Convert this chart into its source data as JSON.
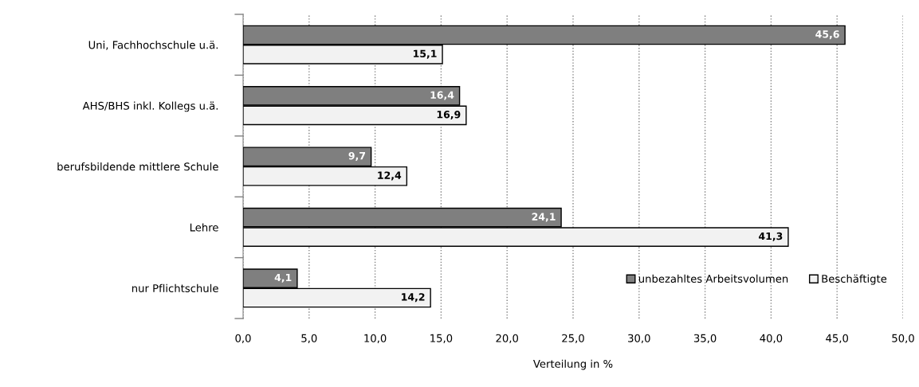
{
  "chart_data": {
    "type": "bar",
    "orientation": "horizontal",
    "xlabel": "Verteilung in %",
    "categories": [
      "Uni, Fachhochschule u.ä.",
      "AHS/BHS inkl. Kollegs u.ä.",
      "berufsbildende mittlere Schule",
      "Lehre",
      "nur Pflichtschule"
    ],
    "series": [
      {
        "name": "unbezahltes Arbeitsvolumen",
        "color": "#7f7f7f",
        "values": [
          45.6,
          16.4,
          9.7,
          24.1,
          4.1
        ],
        "value_labels": [
          "45,6",
          "16,4",
          "9,7",
          "24,1",
          "4,1"
        ]
      },
      {
        "name": "Beschäftigte",
        "color": "#f2f2f2",
        "values": [
          15.1,
          16.9,
          12.4,
          41.3,
          14.2
        ],
        "value_labels": [
          "15,1",
          "16,9",
          "12,4",
          "41,3",
          "14,2"
        ]
      }
    ],
    "xlim": [
      0,
      50
    ],
    "xticks": [
      {
        "value": 0,
        "label": "0,0"
      },
      {
        "value": 5,
        "label": "5,0"
      },
      {
        "value": 10,
        "label": "10,0"
      },
      {
        "value": 15,
        "label": "15,0"
      },
      {
        "value": 20,
        "label": "20,0"
      },
      {
        "value": 25,
        "label": "25,0"
      },
      {
        "value": 30,
        "label": "30,0"
      },
      {
        "value": 35,
        "label": "35,0"
      },
      {
        "value": 40,
        "label": "40,0"
      },
      {
        "value": 45,
        "label": "45,0"
      },
      {
        "value": 50,
        "label": "50,0"
      }
    ],
    "grid": "x",
    "legend": "bottom right"
  }
}
